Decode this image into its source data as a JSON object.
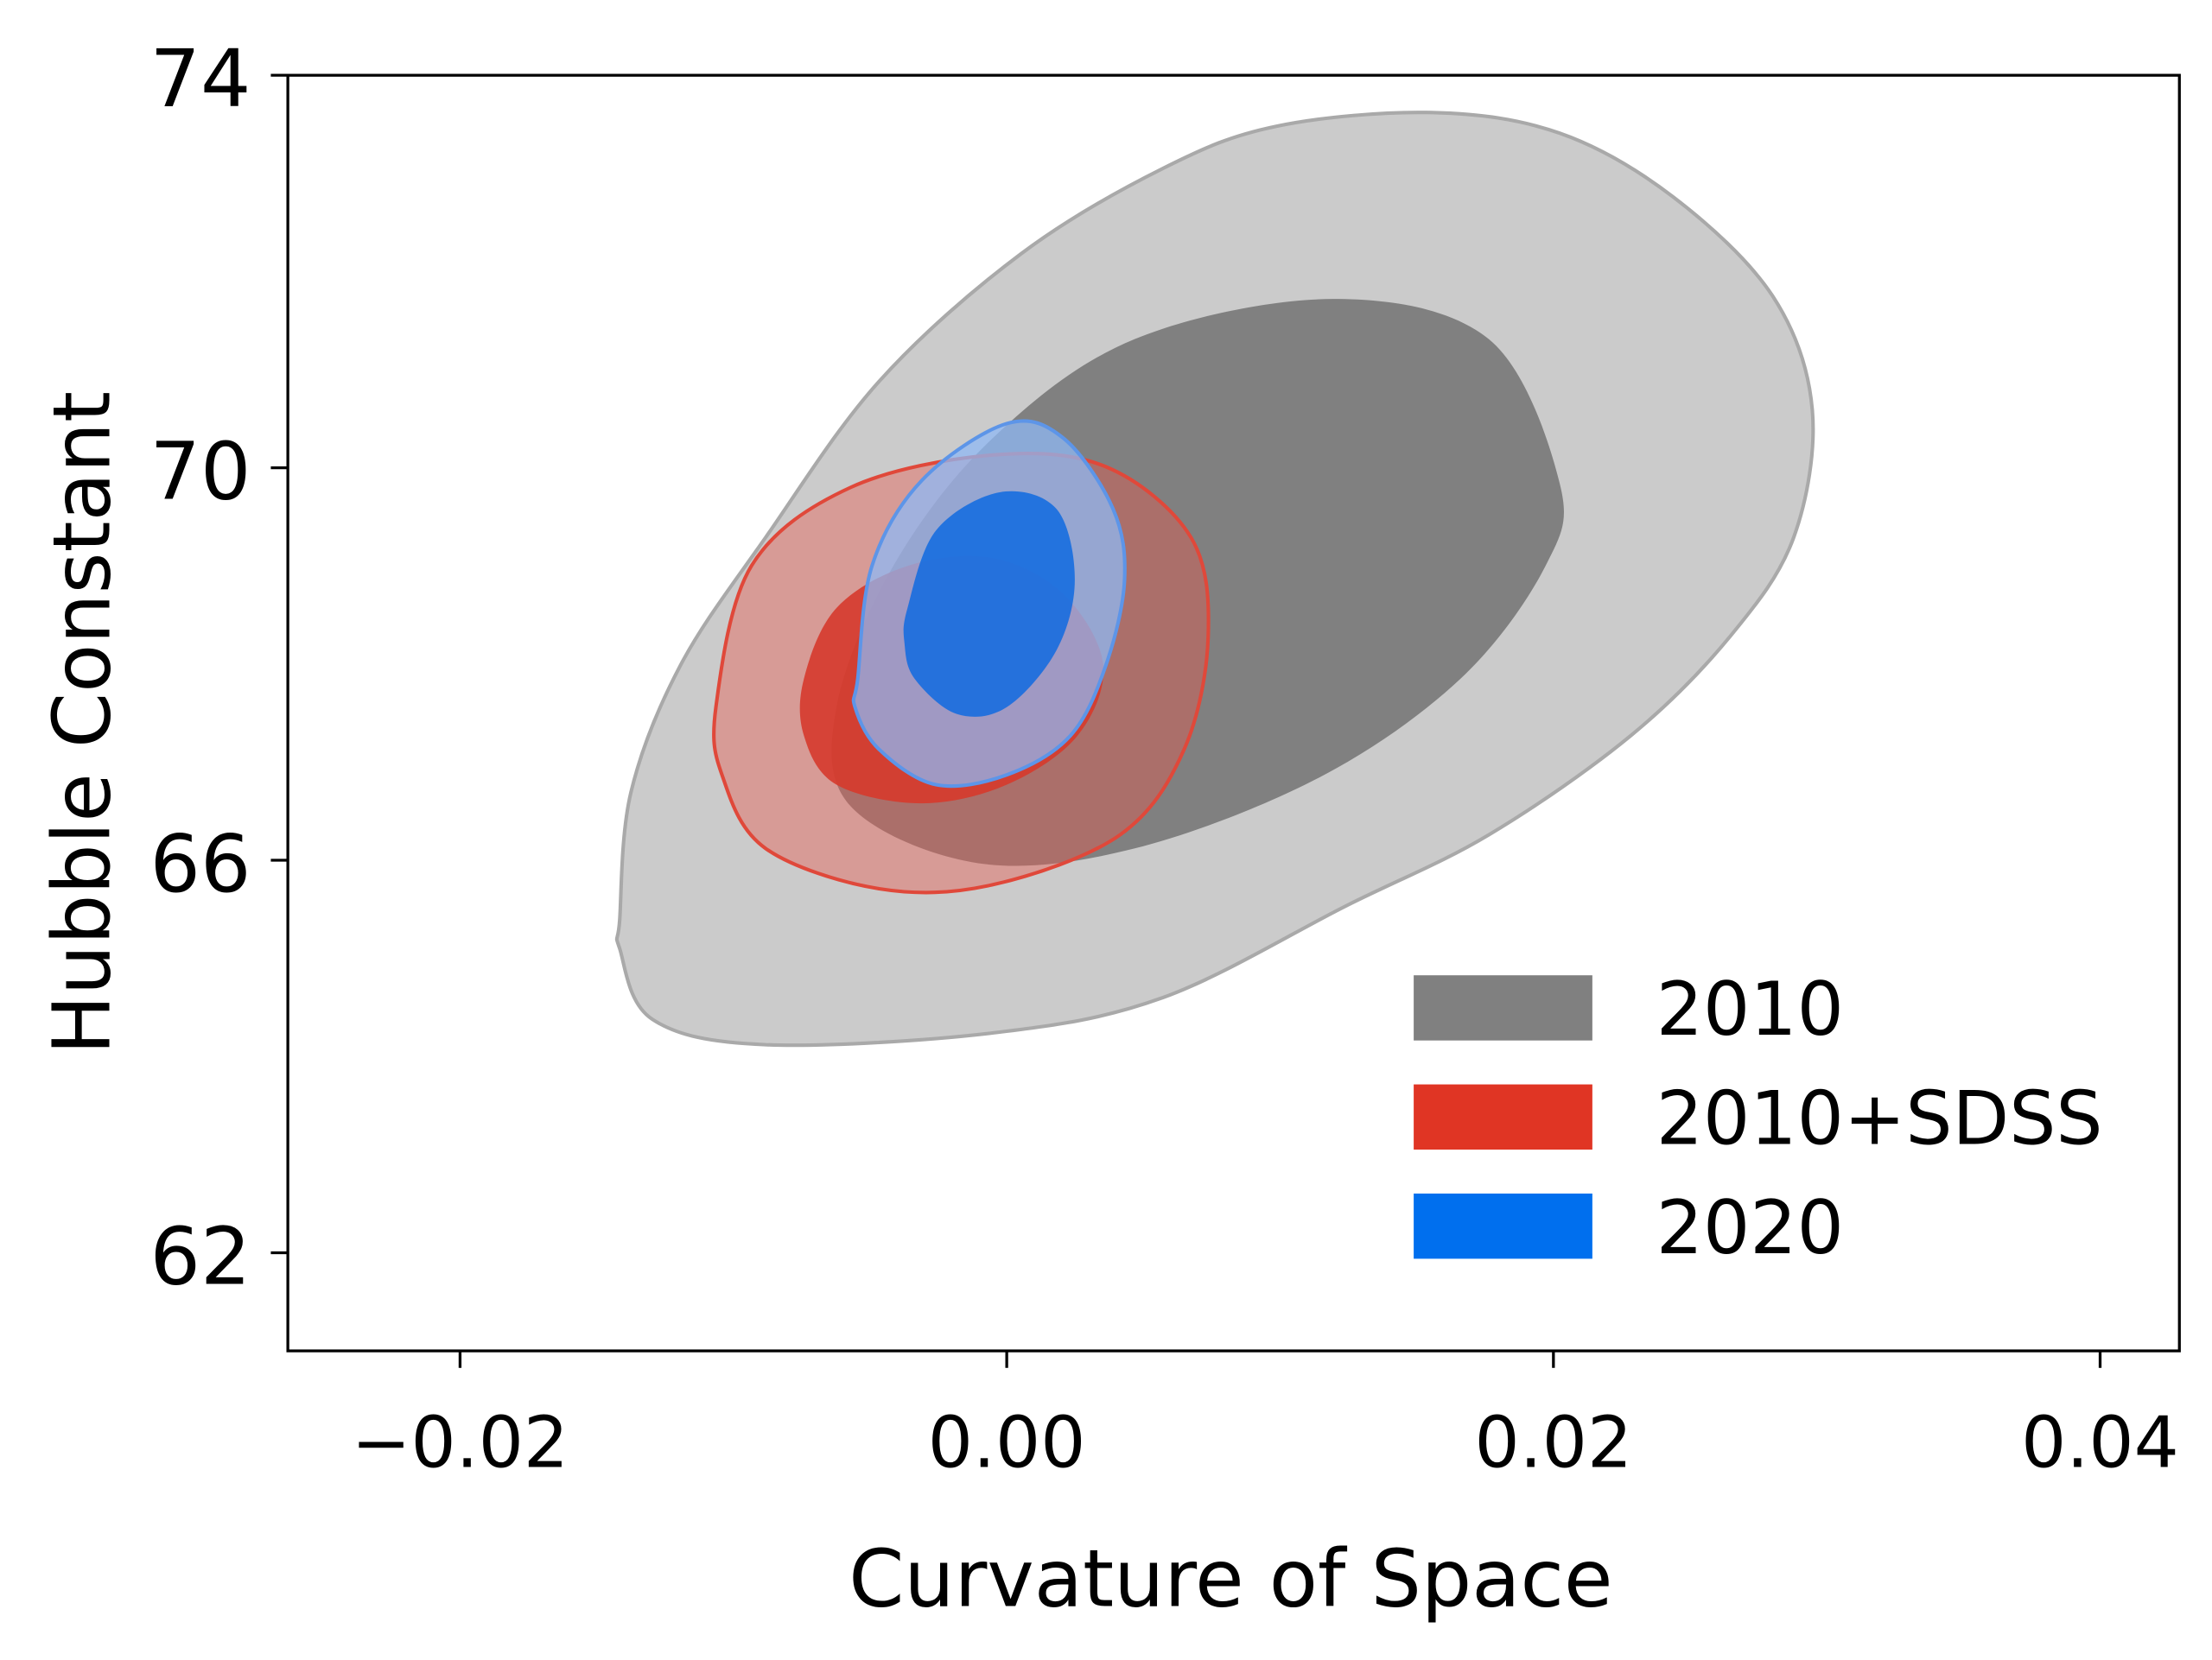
{
  "chart_data": {
    "type": "contour",
    "title": "",
    "xlabel": "Curvature of Space",
    "ylabel": "Hubble Constant",
    "xlim": [
      -0.0263,
      0.0429
    ],
    "ylim": [
      61.0,
      74.0
    ],
    "xticks": [
      -0.02,
      0.0,
      0.02,
      0.04
    ],
    "xtick_labels": [
      "−0.02",
      "0.00",
      "0.02",
      "0.04"
    ],
    "yticks": [
      62,
      66,
      70,
      74
    ],
    "ytick_labels": [
      "62",
      "66",
      "70",
      "74"
    ],
    "grid": false,
    "legend_position": "bottom-right",
    "series": [
      {
        "name": "2010",
        "color": "#808080",
        "contours": [
          {
            "level": "outer",
            "fill": "#cbcbcb",
            "stroke": "#a9a9a9",
            "opacity": 1,
            "points": [
              [
                -0.01416,
                65.39
              ],
              [
                -0.01375,
                66.69
              ],
              [
                -0.01193,
                67.99
              ],
              [
                -0.00882,
                69.29
              ],
              [
                -0.00467,
                70.88
              ],
              [
                0.00052,
                72.18
              ],
              [
                0.00571,
                73.05
              ],
              [
                0.00986,
                73.48
              ],
              [
                0.01556,
                73.62
              ],
              [
                0.02023,
                73.41
              ],
              [
                0.02438,
                72.76
              ],
              [
                0.02802,
                71.75
              ],
              [
                0.02947,
                70.59
              ],
              [
                0.02879,
                69.29
              ],
              [
                0.02646,
                68.28
              ],
              [
                0.02283,
                67.27
              ],
              [
                0.01764,
                66.26
              ],
              [
                0.01245,
                65.54
              ],
              [
                0.00571,
                64.6
              ],
              [
                -0.00052,
                64.24
              ],
              [
                -0.00882,
                64.12
              ],
              [
                -0.01297,
                64.38
              ],
              [
                -0.01416,
                65.1
              ]
            ]
          },
          {
            "level": "inner",
            "fill": "#808080",
            "stroke": "none",
            "opacity": 1,
            "points": [
              [
                -0.00052,
                70.3
              ],
              [
                0.00467,
                71.31
              ],
              [
                0.01193,
                71.72
              ],
              [
                0.01764,
                71.31
              ],
              [
                0.02023,
                69.84
              ],
              [
                0.01971,
                69.0
              ],
              [
                0.0166,
                67.85
              ],
              [
                0.01141,
                66.84
              ],
              [
                0.00467,
                66.12
              ],
              [
                -0.00104,
                65.97
              ],
              [
                -0.00571,
                66.55
              ],
              [
                -0.00623,
                67.56
              ],
              [
                -0.00415,
                69.0
              ]
            ]
          }
        ]
      },
      {
        "name": "2010+SDSS",
        "color": "#e03524",
        "contours": [
          {
            "level": "outer",
            "fill": "#e8594c",
            "stroke": "#e0483a",
            "opacity": 0.42,
            "points": [
              [
                -0.01064,
                67.56
              ],
              [
                -0.00934,
                69.0
              ],
              [
                -0.00571,
                69.8
              ],
              [
                -0.00052,
                70.13
              ],
              [
                0.00363,
                70.01
              ],
              [
                0.00674,
                69.29
              ],
              [
                0.00737,
                68.28
              ],
              [
                0.00649,
                67.13
              ],
              [
                0.00415,
                66.26
              ],
              [
                -0.00052,
                65.75
              ],
              [
                -0.00467,
                65.71
              ],
              [
                -0.00882,
                66.12
              ],
              [
                -0.01038,
                66.84
              ]
            ]
          },
          {
            "level": "inner",
            "fill": "#d63a2c",
            "stroke": "none",
            "opacity": 0.9,
            "points": [
              [
                -0.00742,
                67.85
              ],
              [
                -0.00623,
                68.57
              ],
              [
                -0.00363,
                69.0
              ],
              [
                -0.00052,
                69.08
              ],
              [
                0.00208,
                68.71
              ],
              [
                0.00353,
                67.99
              ],
              [
                0.00259,
                67.27
              ],
              [
                0.0,
                66.77
              ],
              [
                -0.00311,
                66.58
              ],
              [
                -0.00623,
                66.77
              ],
              [
                -0.00742,
                67.27
              ]
            ]
          }
        ]
      },
      {
        "name": "2020",
        "color": "#006fee",
        "contours": [
          {
            "level": "outer",
            "fill": "#8fb8f4",
            "stroke": "#5d95e8",
            "opacity": 0.75,
            "points": [
              [
                -0.00545,
                67.85
              ],
              [
                -0.00493,
                69.0
              ],
              [
                -0.00311,
                69.87
              ],
              [
                0.0,
                70.45
              ],
              [
                0.00208,
                70.3
              ],
              [
                0.00389,
                69.58
              ],
              [
                0.00431,
                68.86
              ],
              [
                0.00363,
                67.99
              ],
              [
                0.00233,
                67.27
              ],
              [
                0.0,
                66.87
              ],
              [
                -0.00259,
                66.77
              ],
              [
                -0.00467,
                67.13
              ],
              [
                -0.00555,
                67.56
              ]
            ]
          },
          {
            "level": "inner",
            "fill": "#0f6ae0",
            "stroke": "none",
            "opacity": 0.85,
            "points": [
              [
                -0.00363,
                68.57
              ],
              [
                -0.00259,
                69.36
              ],
              [
                -0.00026,
                69.75
              ],
              [
                0.00182,
                69.58
              ],
              [
                0.00249,
                68.86
              ],
              [
                0.00182,
                68.14
              ],
              [
                0.0,
                67.56
              ],
              [
                -0.00182,
                67.49
              ],
              [
                -0.00337,
                67.85
              ],
              [
                -0.00374,
                68.21
              ]
            ]
          }
        ]
      }
    ]
  }
}
